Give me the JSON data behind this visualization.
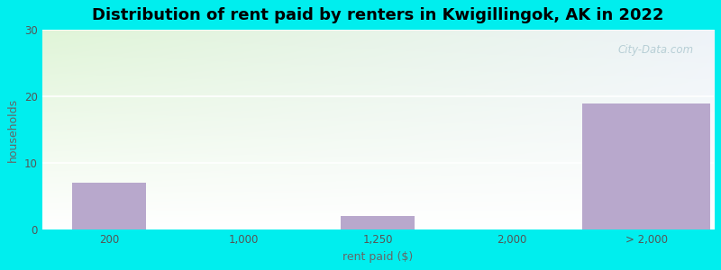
{
  "categories": [
    "200",
    "1,000",
    "1,250",
    "2,000",
    "> 2,000"
  ],
  "values": [
    7,
    0,
    2,
    0,
    19
  ],
  "bar_color": "#b8a8cc",
  "background_color": "#00eeee",
  "title": "Distribution of rent paid by renters in Kwigillingok, AK in 2022",
  "xlabel": "rent paid ($)",
  "ylabel": "households",
  "ylim": [
    0,
    30
  ],
  "yticks": [
    0,
    10,
    20,
    30
  ],
  "title_fontsize": 13,
  "axis_label_fontsize": 9,
  "tick_fontsize": 8.5,
  "gradient_topleft": [
    0.878,
    0.96,
    0.847
  ],
  "gradient_topright": [
    0.933,
    0.953,
    0.973
  ],
  "gradient_bottomleft": [
    1.0,
    1.0,
    1.0
  ],
  "gradient_bottomright": [
    1.0,
    1.0,
    1.0
  ],
  "watermark": "City-Data.com"
}
